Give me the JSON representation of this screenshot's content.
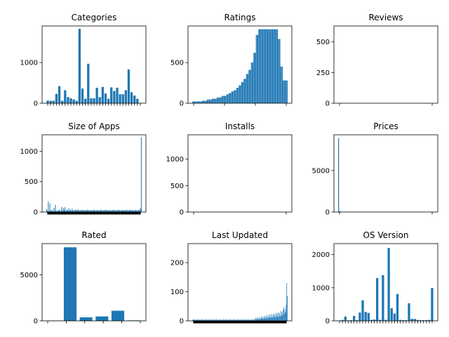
{
  "figure": {
    "title": ""
  },
  "chart_data": [
    {
      "type": "bar",
      "title": "Categories",
      "ylim": [
        0,
        1900
      ],
      "yticks": [
        0,
        1000
      ],
      "n_xticks": 33,
      "values": [
        65,
        60,
        60,
        230,
        420,
        60,
        320,
        150,
        120,
        90,
        60,
        1830,
        360,
        110,
        970,
        120,
        120,
        380,
        150,
        400,
        240,
        110,
        390,
        300,
        380,
        220,
        220,
        320,
        830,
        270,
        190,
        110,
        0
      ]
    },
    {
      "type": "bar",
      "title": "Ratings",
      "ylim": [
        0,
        950
      ],
      "yticks": [
        0,
        500
      ],
      "n_xticks": 4,
      "values": [
        22,
        22,
        22,
        22,
        22,
        22,
        22,
        22,
        22,
        22,
        22,
        22,
        22,
        22,
        22,
        22,
        22,
        22,
        22,
        22,
        22,
        22,
        22,
        22,
        30,
        30,
        30,
        30,
        30,
        30,
        30,
        30,
        30,
        30,
        30,
        30,
        45,
        45,
        45,
        45,
        45,
        45,
        45,
        45,
        45,
        45,
        45,
        45,
        55,
        55,
        55,
        55,
        55,
        55,
        55,
        55,
        55,
        55,
        55,
        55,
        70,
        70,
        70,
        70,
        70,
        70,
        70,
        70,
        70,
        70,
        70,
        70,
        90,
        90,
        90,
        90,
        90,
        90,
        90,
        90,
        90,
        90,
        90,
        90,
        110,
        110,
        110,
        110,
        110,
        110,
        125,
        125,
        125,
        125,
        125,
        125,
        145,
        145,
        145,
        145,
        145,
        145,
        160,
        160,
        160,
        160,
        160,
        160,
        190,
        190,
        190,
        190,
        190,
        190,
        220,
        220,
        220,
        220,
        220,
        220,
        260,
        260,
        260,
        260,
        260,
        260,
        300,
        300,
        300,
        300,
        300,
        300,
        360,
        360,
        360,
        360,
        360,
        360,
        410,
        410,
        410,
        410,
        410,
        410,
        500,
        500,
        500,
        500,
        500,
        500,
        620,
        620,
        620,
        620,
        620,
        620,
        840,
        840,
        840,
        840,
        840,
        840,
        910,
        910,
        910,
        910,
        910,
        910,
        910,
        910,
        910,
        910,
        910,
        910,
        910,
        910,
        910,
        910,
        910,
        910,
        910,
        910,
        910,
        910,
        910,
        910,
        910,
        910,
        910,
        910,
        910,
        910,
        910,
        910,
        910,
        910,
        910,
        910,
        910,
        910,
        910,
        910,
        910,
        910,
        910,
        910,
        910,
        910,
        910,
        910,
        790,
        790,
        790,
        790,
        790,
        790,
        450,
        450,
        450,
        450,
        450,
        450,
        280,
        280,
        280,
        280,
        280,
        280,
        280,
        280,
        280,
        280,
        280,
        280
      ]
    },
    {
      "type": "bar",
      "title": "Reviews",
      "ylim": [
        0,
        630
      ],
      "yticks": [
        0,
        250,
        500
      ],
      "n_xticks": 2,
      "values": []
    },
    {
      "type": "bar",
      "title": "Size of Apps",
      "ylim": [
        0,
        1270
      ],
      "yticks": [
        0,
        500,
        1000
      ],
      "n_xticks": 120,
      "values": [
        45,
        20,
        175,
        12,
        140,
        30,
        20,
        35,
        8,
        70,
        20,
        120,
        15,
        25,
        10,
        30,
        40,
        15,
        25,
        85,
        20,
        65,
        30,
        80,
        20,
        30,
        45,
        20,
        60,
        25,
        35,
        20,
        55,
        25,
        30,
        20,
        40,
        35,
        20,
        45,
        25,
        30,
        20,
        35,
        25,
        40,
        20,
        30,
        25,
        35,
        20,
        40,
        25,
        30,
        20,
        35,
        25,
        30,
        20,
        40,
        25,
        30,
        20,
        35,
        25,
        30,
        20,
        35,
        25,
        40,
        20,
        30,
        25,
        35,
        20,
        40,
        25,
        30,
        20,
        35,
        25,
        30,
        20,
        35,
        25,
        40,
        20,
        30,
        25,
        35,
        20,
        40,
        25,
        30,
        20,
        35,
        25,
        30,
        20,
        35,
        25,
        40,
        20,
        30,
        25,
        35,
        20,
        40,
        25,
        30,
        20,
        35,
        25,
        30,
        20,
        35,
        25,
        40,
        60,
        1230
      ]
    },
    {
      "type": "bar",
      "title": "Installs",
      "ylim": [
        0,
        1460
      ],
      "yticks": [
        0,
        500,
        1000
      ],
      "n_xticks": 2,
      "values": []
    },
    {
      "type": "bar",
      "title": "Prices",
      "ylim": [
        0,
        9300
      ],
      "yticks": [
        0,
        5000
      ],
      "n_xticks": 2,
      "values": [
        8900,
        120,
        60,
        40,
        30,
        20,
        15,
        10,
        10,
        10,
        10,
        10,
        10,
        10,
        10,
        10,
        10,
        10,
        10,
        10,
        10,
        10,
        10,
        10,
        10,
        10,
        10,
        10,
        10,
        10,
        10,
        10,
        10,
        10,
        10,
        10,
        10,
        10,
        10,
        10,
        10,
        10,
        10,
        10,
        10,
        10,
        10,
        10,
        10,
        10,
        10,
        10,
        10,
        10,
        10,
        10,
        10,
        10,
        10,
        10,
        10,
        10,
        10,
        10,
        10,
        10,
        10,
        10,
        10,
        10,
        10,
        10,
        10,
        10,
        10,
        10,
        10,
        10,
        10,
        10,
        10,
        10,
        10,
        10,
        10,
        10,
        10,
        10,
        10,
        10,
        10,
        10,
        10,
        10,
        10,
        10,
        10,
        10,
        10,
        10
      ]
    },
    {
      "type": "bar",
      "title": "Rated",
      "ylim": [
        0,
        8400
      ],
      "yticks": [
        0,
        5000
      ],
      "n_xticks": 6,
      "values": [
        40,
        8000,
        380,
        480,
        1100,
        50
      ]
    },
    {
      "type": "bar",
      "title": "Last Updated",
      "ylim": [
        0,
        265
      ],
      "yticks": [
        0,
        100,
        200
      ],
      "n_xticks": 160,
      "values": [
        4,
        2,
        5,
        3,
        6,
        2,
        4,
        3,
        5,
        2,
        6,
        3,
        4,
        2,
        5,
        3,
        6,
        2,
        4,
        3,
        5,
        2,
        6,
        3,
        4,
        2,
        5,
        3,
        6,
        2,
        4,
        3,
        5,
        2,
        6,
        3,
        4,
        2,
        5,
        3,
        6,
        2,
        4,
        3,
        5,
        2,
        6,
        3,
        4,
        2,
        5,
        3,
        6,
        2,
        4,
        3,
        5,
        2,
        6,
        3,
        4,
        2,
        5,
        3,
        6,
        2,
        4,
        3,
        5,
        2,
        6,
        3,
        4,
        2,
        5,
        3,
        6,
        2,
        4,
        3,
        5,
        2,
        6,
        3,
        4,
        2,
        5,
        3,
        6,
        2,
        4,
        3,
        5,
        2,
        6,
        3,
        4,
        2,
        5,
        3,
        6,
        2,
        4,
        3,
        8,
        4,
        10,
        5,
        12,
        6,
        9,
        5,
        14,
        6,
        10,
        7,
        16,
        8,
        12,
        7,
        18,
        9,
        14,
        8,
        20,
        10,
        16,
        9,
        22,
        11,
        18,
        10,
        24,
        12,
        20,
        11,
        26,
        14,
        22,
        12,
        28,
        15,
        24,
        13,
        30,
        16,
        26,
        15,
        34,
        18,
        30,
        20,
        38,
        48,
        25,
        40,
        30,
        55,
        130,
        85
      ]
    },
    {
      "type": "bar",
      "title": "OS Version",
      "ylim": [
        0,
        2330
      ],
      "yticks": [
        0,
        1000,
        2000
      ],
      "n_xticks": 33,
      "values": [
        10,
        30,
        130,
        15,
        20,
        150,
        20,
        250,
        620,
        270,
        240,
        30,
        40,
        1290,
        30,
        1380,
        30,
        2200,
        380,
        220,
        810,
        30,
        20,
        20,
        530,
        60,
        60,
        30,
        20,
        20,
        20,
        30,
        990
      ]
    }
  ]
}
